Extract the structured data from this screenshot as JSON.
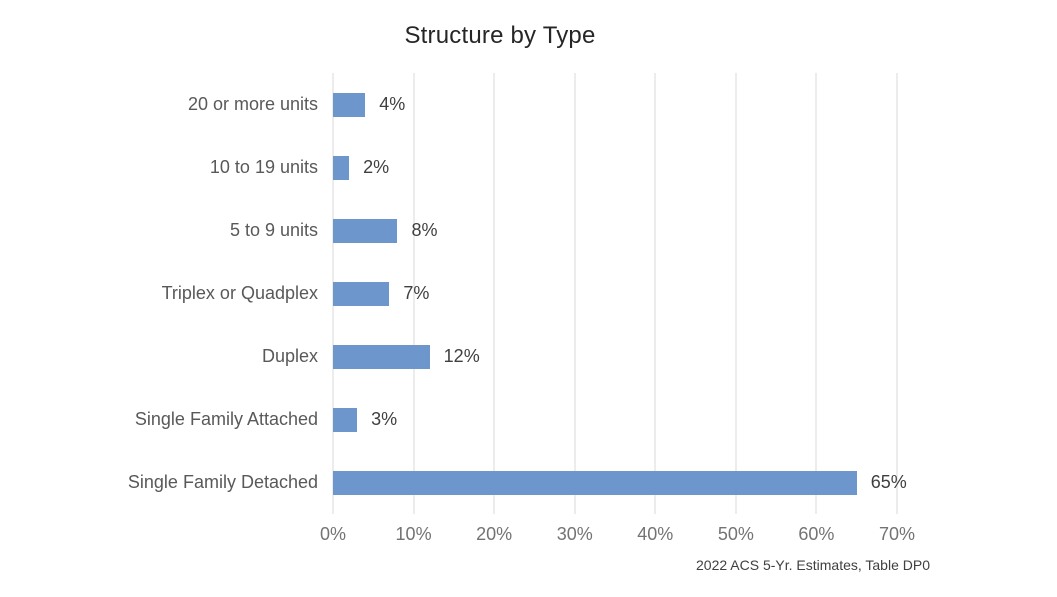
{
  "title": "Structure by Type",
  "source_note": "2022 ACS 5-Yr. Estimates, Table DP0",
  "colors": {
    "bar": "#6D96CC",
    "gridline": "#D9D9D9",
    "title": "#262626",
    "category_label": "#595959",
    "value_label": "#3F3F3F",
    "axis_label": "#737373",
    "footer": "#404040",
    "background": "#FFFFFF"
  },
  "chart_data": {
    "type": "bar",
    "orientation": "horizontal",
    "title": "Structure by Type",
    "categories": [
      "20 or more units",
      "10 to 19 units",
      "5 to 9 units",
      "Triplex or Quadplex",
      "Duplex",
      "Single Family Attached",
      "Single Family Detached"
    ],
    "values": [
      4,
      2,
      8,
      7,
      12,
      3,
      65
    ],
    "value_labels": [
      "4%",
      "2%",
      "8%",
      "7%",
      "12%",
      "3%",
      "65%"
    ],
    "xlabel": "",
    "ylabel": "",
    "xlim": [
      0,
      70
    ],
    "x_tick_values": [
      0,
      10,
      20,
      30,
      40,
      50,
      60,
      70
    ],
    "x_tick_labels": [
      "0%",
      "10%",
      "20%",
      "30%",
      "40%",
      "50%",
      "60%",
      "70%"
    ],
    "grid": "vertical",
    "legend": "none",
    "source_note": "2022 ACS 5-Yr. Estimates, Table DP0"
  }
}
